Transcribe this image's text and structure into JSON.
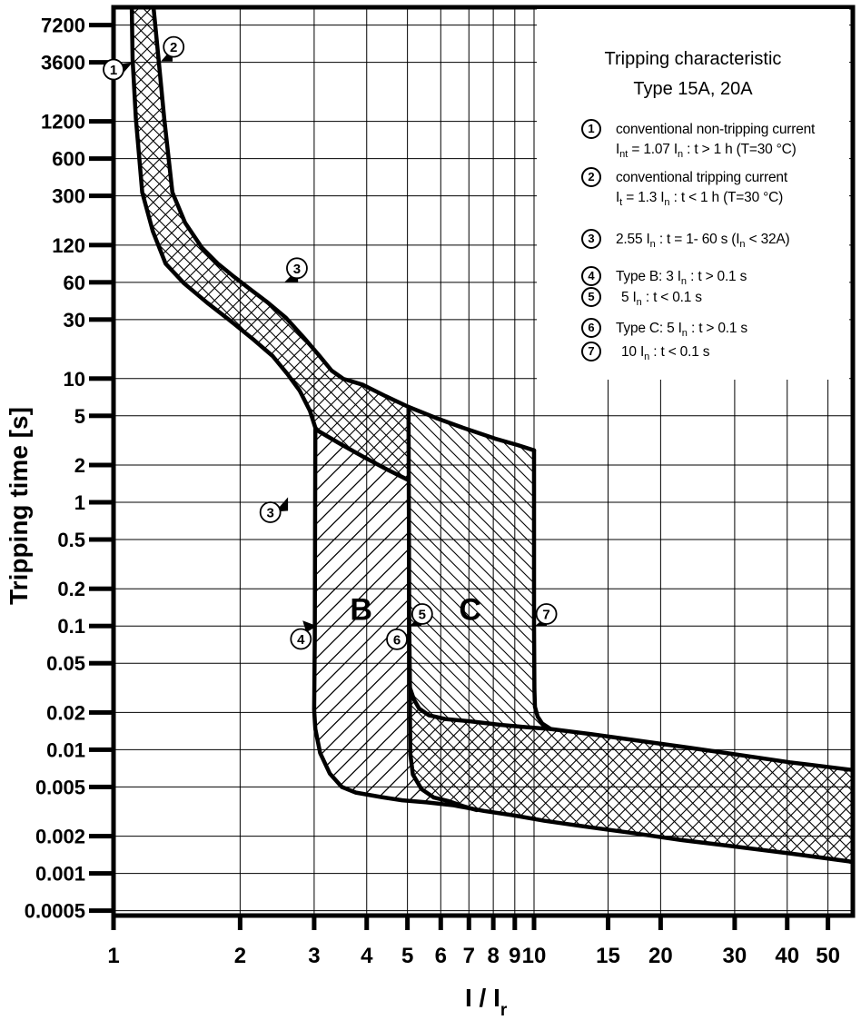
{
  "legend": {
    "title_line1": "Tripping characteristic",
    "title_line2": "Type 15A, 20A",
    "items": [
      {
        "num": "1",
        "indent": 0,
        "lines": [
          [
            {
              "t": "conventional non-tripping current"
            }
          ],
          [
            {
              "t": "I"
            },
            {
              "t": "nt",
              "sub": true
            },
            {
              "t": " = 1.07 "
            },
            {
              "t": "I"
            },
            {
              "t": "n",
              "sub": true
            },
            {
              "t": " :  t > 1 h   (T=30 °C)"
            }
          ]
        ]
      },
      {
        "num": "2",
        "indent": 0,
        "lines": [
          [
            {
              "t": "conventional tripping current"
            }
          ],
          [
            {
              "t": "I"
            },
            {
              "t": "t",
              "sub": true
            },
            {
              "t": " = 1.3 "
            },
            {
              "t": "I"
            },
            {
              "t": "n",
              "sub": true
            },
            {
              "t": " :  t < 1 h   (T=30 °C)"
            }
          ]
        ]
      },
      {
        "num": "3",
        "indent": 0,
        "lines": [
          [
            {
              "t": "2.55 "
            },
            {
              "t": "I"
            },
            {
              "t": "n",
              "sub": true
            },
            {
              "t": " : t = 1- 60 s ("
            },
            {
              "t": "I"
            },
            {
              "t": "n",
              "sub": true
            },
            {
              "t": " < 32A)"
            }
          ]
        ]
      },
      {
        "num": "4",
        "indent": 0,
        "lines": [
          [
            {
              "t": "Type B: 3 "
            },
            {
              "t": "I"
            },
            {
              "t": "n",
              "sub": true
            },
            {
              "t": " :  t > 0.1 s"
            }
          ]
        ]
      },
      {
        "num": "5",
        "indent": 6,
        "lines": [
          [
            {
              "t": "5 "
            },
            {
              "t": "I"
            },
            {
              "t": "n",
              "sub": true
            },
            {
              "t": " :  t < 0.1 s"
            }
          ]
        ]
      },
      {
        "num": "6",
        "indent": 0,
        "lines": [
          [
            {
              "t": "Type C: 5 "
            },
            {
              "t": "I"
            },
            {
              "t": "n",
              "sub": true
            },
            {
              "t": " : t > 0.1 s"
            }
          ]
        ]
      },
      {
        "num": "7",
        "indent": 6,
        "lines": [
          [
            {
              "t": "10 "
            },
            {
              "t": "I"
            },
            {
              "t": "n",
              "sub": true
            },
            {
              "t": " : t < 0.1 s"
            }
          ]
        ]
      }
    ]
  },
  "chart_data": {
    "type": "line",
    "title": "Tripping characteristic Type 15A, 20A",
    "x_axis": {
      "label": "I / I",
      "label_sub": "r",
      "scale": "log",
      "tick_labels": [
        "1",
        "2",
        "3",
        "4",
        "5",
        "6",
        "7",
        "8",
        "9",
        "10",
        "15",
        "20",
        "30",
        "40",
        "50"
      ],
      "tick_values": [
        1,
        2,
        3,
        4,
        5,
        6,
        7,
        8,
        9,
        10,
        15,
        20,
        30,
        40,
        50
      ],
      "range": [
        1,
        57.3
      ],
      "grid": true
    },
    "y_axis": {
      "label": "Tripping time [s]",
      "scale": "log",
      "tick_labels": [
        "7200",
        "3600",
        "1200",
        "600",
        "300",
        "120",
        "60",
        "30",
        "10",
        "5",
        "2",
        "1",
        "0.5",
        "0.2",
        "0.1",
        "0.05",
        "0.02",
        "0.01",
        "0.005",
        "0.002",
        "0.001",
        "0.0005"
      ],
      "tick_values": [
        7200,
        3600,
        1200,
        600,
        300,
        120,
        60,
        30,
        10,
        5,
        2,
        1,
        0.5,
        0.2,
        0.1,
        0.05,
        0.02,
        0.01,
        0.005,
        0.002,
        0.001,
        0.0005
      ],
      "range": [
        0.0005,
        9900
      ],
      "grid": true
    },
    "series": [
      {
        "name": "conventional-non-tripping-limit",
        "points": [
          [
            1.105,
            9900
          ],
          [
            1.11,
            3800
          ],
          [
            1.13,
            1270
          ],
          [
            1.17,
            320
          ],
          [
            1.24,
            155
          ],
          [
            1.33,
            85
          ],
          [
            1.47,
            59
          ],
          [
            1.67,
            41
          ],
          [
            1.88,
            30
          ],
          [
            2.13,
            21.3
          ],
          [
            2.39,
            15.2
          ],
          [
            2.59,
            10.9
          ],
          [
            2.77,
            8.0
          ],
          [
            2.93,
            5.5
          ],
          [
            3.03,
            3.87
          ],
          [
            3.47,
            2.95
          ],
          [
            3.93,
            2.33
          ],
          [
            4.47,
            1.84
          ],
          [
            4.99,
            1.53
          ]
        ]
      },
      {
        "name": "conventional-tripping-limit",
        "points": [
          [
            1.245,
            9900
          ],
          [
            1.28,
            3800
          ],
          [
            1.32,
            1270
          ],
          [
            1.38,
            320
          ],
          [
            1.48,
            182
          ],
          [
            1.62,
            115
          ],
          [
            1.77,
            85
          ],
          [
            1.94,
            66
          ],
          [
            2.11,
            53
          ],
          [
            2.33,
            41
          ],
          [
            2.57,
            31
          ],
          [
            2.84,
            21.3
          ],
          [
            3.09,
            15.2
          ],
          [
            3.3,
            11.6
          ],
          [
            3.52,
            9.95
          ],
          [
            3.92,
            8.9
          ],
          [
            4.44,
            7.2
          ],
          [
            5.03,
            5.9
          ],
          [
            5.85,
            4.8
          ],
          [
            6.78,
            4.0
          ],
          [
            8.08,
            3.27
          ],
          [
            9.14,
            2.9
          ],
          [
            10.0,
            2.63
          ]
        ]
      },
      {
        "name": "type-B-lower-magnetic-limit-3In",
        "points": [
          [
            3.02,
            3.87
          ],
          [
            3.01,
            0.08
          ],
          [
            3.0,
            0.021
          ],
          [
            3.02,
            0.0147
          ],
          [
            3.1,
            0.0094
          ],
          [
            3.27,
            0.0064
          ],
          [
            3.49,
            0.005
          ],
          [
            3.77,
            0.0045
          ],
          [
            4.34,
            0.00414
          ],
          [
            4.86,
            0.0039
          ],
          [
            5.56,
            0.00375
          ],
          [
            6.45,
            0.00355
          ],
          [
            7.6,
            0.0032
          ],
          [
            8.93,
            0.00295
          ],
          [
            10.6,
            0.00266
          ],
          [
            13.6,
            0.00236
          ],
          [
            17.5,
            0.0021
          ],
          [
            22.4,
            0.00186
          ],
          [
            28.7,
            0.00168
          ],
          [
            40.6,
            0.00145
          ],
          [
            56.2,
            0.00125
          ],
          [
            57.3,
            0.00123
          ]
        ]
      },
      {
        "name": "type-B-upper-type-C-lower-limit-5In",
        "points": [
          [
            5.03,
            5.9
          ],
          [
            5.05,
            0.1
          ],
          [
            5.07,
            0.031
          ],
          [
            5.07,
            0.0182
          ],
          [
            5.08,
            0.0092
          ],
          [
            5.15,
            0.0063
          ],
          [
            5.4,
            0.0048
          ],
          [
            5.78,
            0.0041
          ],
          [
            6.25,
            0.00385
          ],
          [
            6.78,
            0.0035
          ],
          [
            7.3,
            0.00325
          ]
        ]
      },
      {
        "name": "magnetic-band-upper-boundary",
        "points": [
          [
            5.08,
            0.031
          ],
          [
            5.18,
            0.0255
          ],
          [
            5.33,
            0.0215
          ],
          [
            5.62,
            0.019
          ],
          [
            6.15,
            0.0177
          ],
          [
            7.12,
            0.0169
          ],
          [
            8.3,
            0.0159
          ],
          [
            9.6,
            0.0152
          ],
          [
            10.96,
            0.0147
          ],
          [
            13.6,
            0.0134
          ],
          [
            17.5,
            0.0119
          ],
          [
            22.4,
            0.0106
          ],
          [
            28.7,
            0.0094
          ],
          [
            40.6,
            0.0079
          ],
          [
            56.2,
            0.0069
          ],
          [
            57.3,
            0.00685
          ]
        ]
      },
      {
        "name": "type-C-upper-magnetic-limit-10In",
        "points": [
          [
            10.0,
            2.63
          ],
          [
            10.0,
            0.1
          ],
          [
            10.02,
            0.031
          ],
          [
            10.05,
            0.0222
          ],
          [
            10.2,
            0.0185
          ],
          [
            10.45,
            0.0163
          ],
          [
            10.96,
            0.0147
          ]
        ]
      }
    ],
    "regions": [
      {
        "name": "thermal-band",
        "hatch": "cross"
      },
      {
        "name": "type-B-band",
        "hatch": "slash",
        "label": "B",
        "label_I": 3.88,
        "label_t": 0.112
      },
      {
        "name": "type-C-band",
        "hatch": "backslash",
        "label": "C",
        "label_I": 7.05,
        "label_t": 0.112
      },
      {
        "name": "magnetic-band",
        "hatch": "cross"
      }
    ],
    "annotations": [
      {
        "label": "1",
        "I": 1.0,
        "t": 3150,
        "target_I": 1.11,
        "target_t": 3600,
        "tri": [
          [
            0,
            0
          ],
          [
            -15,
            2
          ],
          [
            -14,
            16
          ]
        ]
      },
      {
        "label": "2",
        "I": 1.39,
        "t": 4800,
        "target_I": 1.295,
        "target_t": 3650,
        "tri": [
          [
            0,
            0
          ],
          [
            13,
            -15
          ],
          [
            13,
            0
          ]
        ]
      },
      {
        "label": "3",
        "I": 2.73,
        "t": 78,
        "target_I": 2.55,
        "target_t": 60,
        "tri": [
          [
            0,
            0
          ],
          [
            15,
            -15
          ],
          [
            15,
            0
          ]
        ]
      },
      {
        "label": "3",
        "I": 2.36,
        "t": 0.83,
        "target_I": 2.6,
        "target_t": 1.1,
        "tri": [
          [
            0,
            0
          ],
          [
            -14,
            16
          ],
          [
            0,
            15
          ]
        ]
      },
      {
        "label": "4",
        "I": 2.79,
        "t": 0.0785,
        "target_I": 3.05,
        "target_t": 0.1,
        "tri": [
          [
            0,
            0
          ],
          [
            -16,
            -6
          ],
          [
            -12,
            7
          ]
        ]
      },
      {
        "label": "5",
        "I": 5.42,
        "t": 0.125,
        "target_I": 5.06,
        "target_t": 0.1,
        "tri": [
          [
            0,
            0
          ],
          [
            13,
            -13
          ],
          [
            13,
            0
          ]
        ]
      },
      {
        "label": "6",
        "I": 4.72,
        "t": 0.078
      },
      {
        "label": "7",
        "I": 10.7,
        "t": 0.125,
        "target_I": 10.05,
        "target_t": 0.1,
        "tri": [
          [
            0,
            0
          ],
          [
            13,
            -11
          ],
          [
            13,
            0
          ]
        ]
      }
    ]
  }
}
